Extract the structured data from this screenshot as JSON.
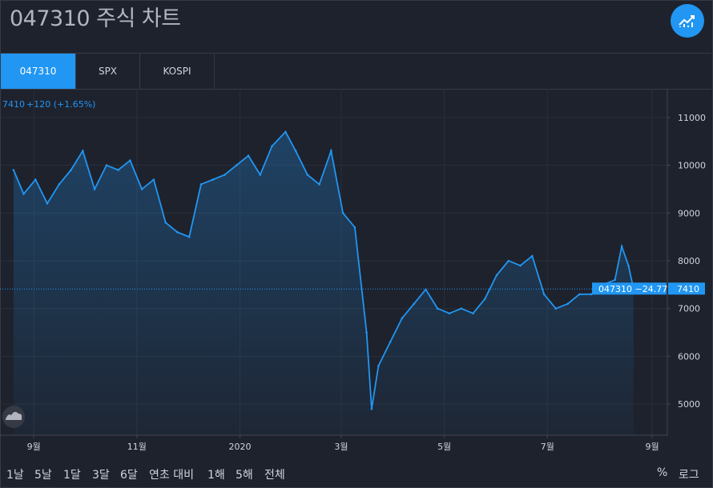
{
  "header": {
    "title": "047310 주식 차트"
  },
  "tabs": [
    {
      "label": "047310",
      "active": true
    },
    {
      "label": "SPX",
      "active": false
    },
    {
      "label": "KOSPI",
      "active": false
    }
  ],
  "quote": {
    "price": "7410",
    "change": "+120 (+1.65%)"
  },
  "ranges": [
    "1날",
    "5날",
    "1달",
    "3달",
    "6달",
    "연초 대비",
    "1해",
    "5해",
    "전체"
  ],
  "scale_options": {
    "percent": "%",
    "log": "로그"
  },
  "colors": {
    "background": "#1e222d",
    "line": "#2196f3",
    "grid": "#2a2e39",
    "text": "#d1d4dc"
  },
  "icons": {
    "title_button": "chart-line-icon",
    "logo": "tradingview-cloud-icon"
  },
  "chart_data": {
    "type": "area",
    "series_label": "047310 −24.77%",
    "last_value": 7410,
    "ylim": [
      4350,
      11600
    ],
    "yticks": [
      5000,
      6000,
      7000,
      8000,
      9000,
      10000,
      11000
    ],
    "xticks": [
      "9월",
      "11월",
      "2020",
      "3월",
      "5월",
      "7월",
      "9월"
    ],
    "x": [
      "2019-08-20",
      "2019-08-26",
      "2019-09-02",
      "2019-09-09",
      "2019-09-16",
      "2019-09-23",
      "2019-09-30",
      "2019-10-07",
      "2019-10-14",
      "2019-10-21",
      "2019-10-28",
      "2019-11-04",
      "2019-11-11",
      "2019-11-18",
      "2019-11-25",
      "2019-12-02",
      "2019-12-09",
      "2019-12-16",
      "2019-12-23",
      "2019-12-30",
      "2020-01-06",
      "2020-01-13",
      "2020-01-20",
      "2020-01-28",
      "2020-02-03",
      "2020-02-10",
      "2020-02-17",
      "2020-02-24",
      "2020-03-02",
      "2020-03-09",
      "2020-03-16",
      "2020-03-19",
      "2020-03-23",
      "2020-03-30",
      "2020-04-06",
      "2020-04-13",
      "2020-04-20",
      "2020-04-27",
      "2020-05-04",
      "2020-05-11",
      "2020-05-18",
      "2020-05-25",
      "2020-06-01",
      "2020-06-08",
      "2020-06-15",
      "2020-06-22",
      "2020-06-29",
      "2020-07-06",
      "2020-07-13",
      "2020-07-20",
      "2020-07-27",
      "2020-08-03",
      "2020-08-10",
      "2020-08-14",
      "2020-08-18",
      "2020-08-21"
    ],
    "values": [
      9900,
      9400,
      9700,
      9200,
      9600,
      9900,
      10300,
      9500,
      10000,
      9900,
      10100,
      9500,
      9700,
      8800,
      8600,
      8500,
      9600,
      9700,
      9800,
      10000,
      10200,
      9800,
      10400,
      10700,
      10300,
      9800,
      9600,
      10300,
      9000,
      8700,
      6500,
      4900,
      5800,
      6300,
      6800,
      7100,
      7400,
      7000,
      6900,
      7000,
      6900,
      7200,
      7700,
      8000,
      7900,
      8100,
      7300,
      7000,
      7100,
      7300,
      7300,
      7500,
      7600,
      8300,
      7900,
      7410
    ]
  }
}
